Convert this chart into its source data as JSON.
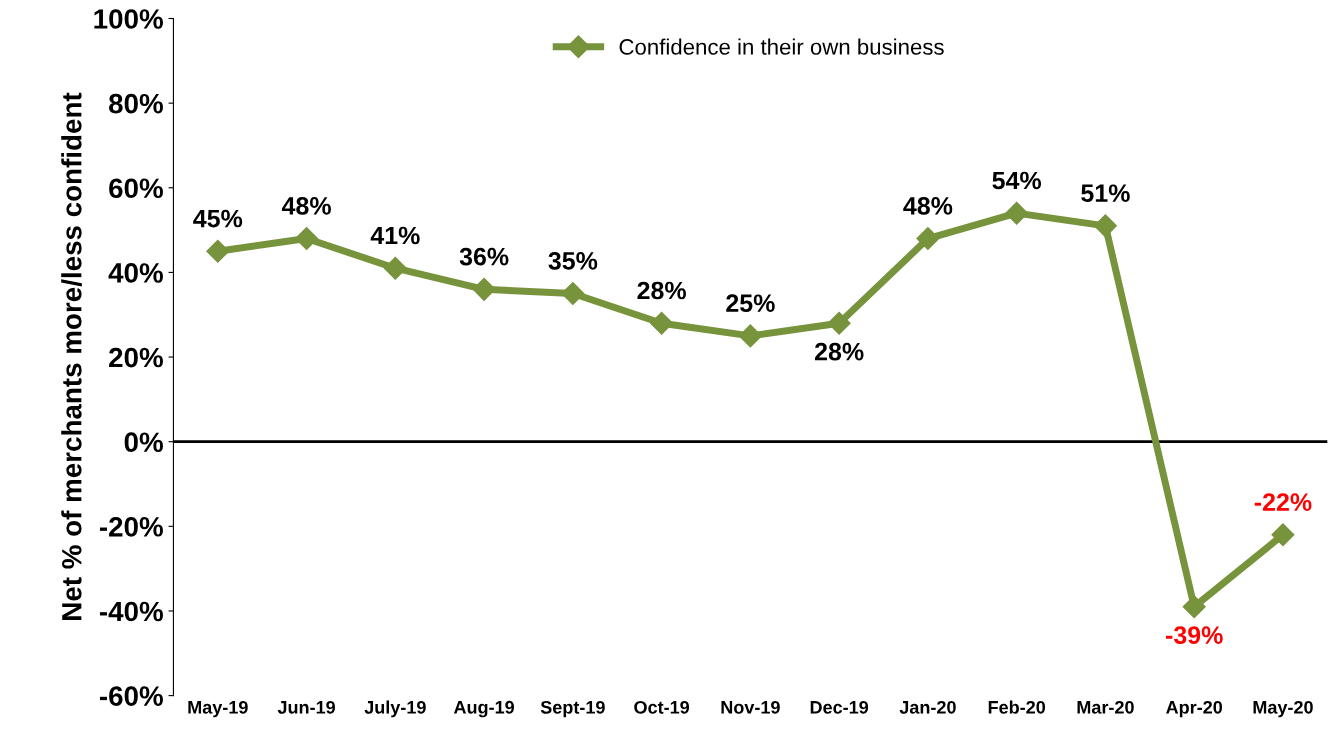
{
  "chart_data": {
    "type": "line",
    "categories": [
      "May-19",
      "Jun-19",
      "July-19",
      "Aug-19",
      "Sept-19",
      "Oct-19",
      "Nov-19",
      "Dec-19",
      "Jan-20",
      "Feb-20",
      "Mar-20",
      "Apr-20",
      "May-20"
    ],
    "series": [
      {
        "name": "Confidence in their own business",
        "color": "#77933c",
        "values": [
          45,
          48,
          41,
          36,
          35,
          28,
          25,
          28,
          48,
          54,
          51,
          -39,
          -22
        ],
        "value_labels": [
          "45%",
          "48%",
          "41%",
          "36%",
          "35%",
          "28%",
          "25%",
          "28%",
          "48%",
          "54%",
          "51%",
          "-39%",
          "-22%"
        ]
      }
    ],
    "ylabel": "Net % of merchants more/less confident",
    "ylim": [
      -60,
      100
    ],
    "yticks": [
      {
        "value": -60,
        "label": "-60%"
      },
      {
        "value": -40,
        "label": "-40%"
      },
      {
        "value": -20,
        "label": "-20%"
      },
      {
        "value": 0,
        "label": "0%"
      },
      {
        "value": 20,
        "label": "20%"
      },
      {
        "value": 40,
        "label": "40%"
      },
      {
        "value": 60,
        "label": "60%"
      },
      {
        "value": 80,
        "label": "80%"
      },
      {
        "value": 100,
        "label": "100%"
      }
    ],
    "ref_lines": [
      {
        "axis": "y",
        "value": 0,
        "color": "#000000"
      }
    ],
    "grid": false,
    "legend": "top",
    "marker": "diamond",
    "line_style": "solid"
  }
}
